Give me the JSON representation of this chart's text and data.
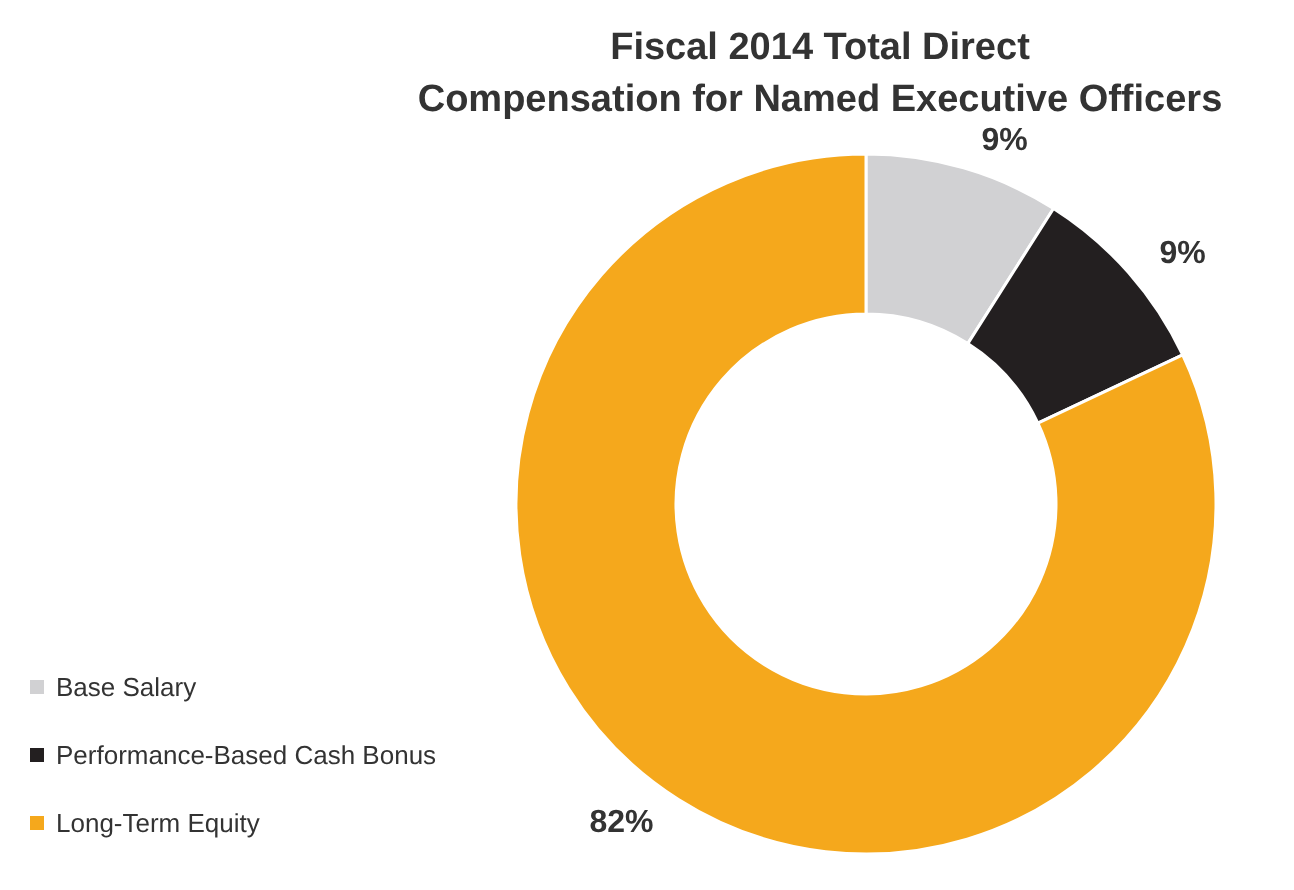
{
  "chart_data": {
    "type": "donut",
    "title": "Fiscal 2014 Total Direct\nCompensation for Named Executive Officers",
    "categories": [
      "Base Salary",
      "Performance-Based Cash Bonus",
      "Long-Term Equity"
    ],
    "values": [
      9,
      9,
      82
    ],
    "value_labels": [
      "9%",
      "9%",
      "82%"
    ],
    "colors": [
      "#d1d1d3",
      "#231f20",
      "#f5a81c"
    ],
    "legend": "bottom left"
  }
}
